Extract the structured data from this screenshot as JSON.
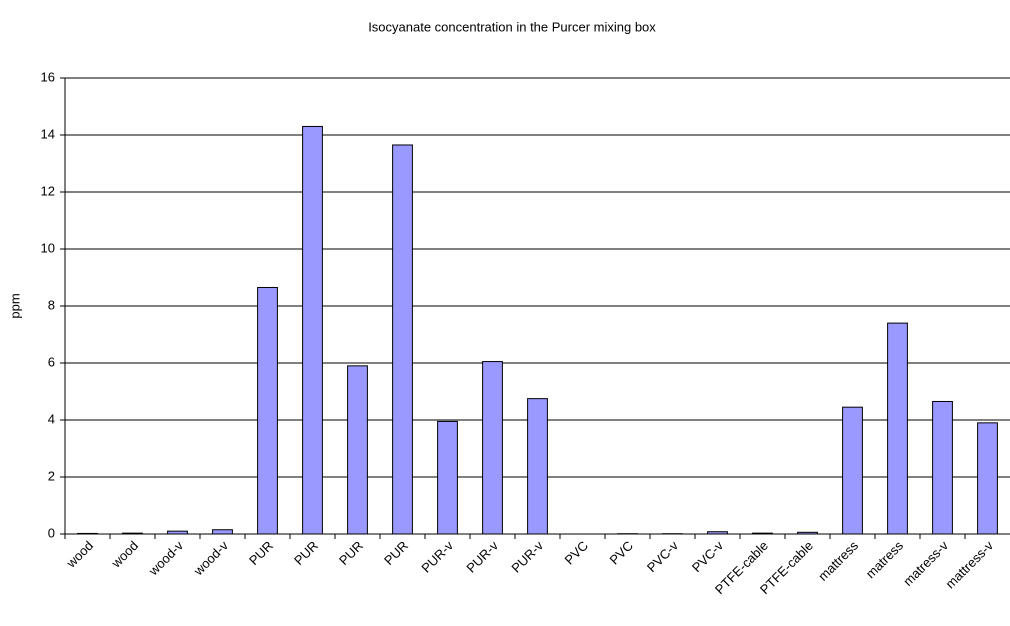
{
  "chart_data": {
    "type": "bar",
    "title": "Isocyanate concentration in the Purcer mixing box",
    "y_label": "ppm",
    "categories": [
      "wood",
      "wood",
      "wood-v",
      "wood-v",
      "PUR",
      "PUR",
      "PUR",
      "PUR",
      "PUR-v",
      "PUR-v",
      "PUR-v",
      "PVC",
      "PVC",
      "PVC-v",
      "PVC-v",
      "PTFE-cable",
      "PTFE-cable",
      "mattress",
      "matress",
      "matress-v",
      "mattress-v"
    ],
    "values": [
      0.02,
      0.03,
      0.1,
      0.15,
      8.65,
      14.3,
      5.9,
      13.65,
      3.95,
      6.05,
      4.75,
      0,
      0.01,
      0.01,
      0.08,
      0.03,
      0.06,
      4.45,
      7.4,
      4.65,
      3.9
    ],
    "color": "#9999ff",
    "ylim": [
      0,
      16
    ],
    "yticks": [
      0,
      2,
      4,
      6,
      8,
      10,
      12,
      14,
      16
    ],
    "grid": true
  }
}
